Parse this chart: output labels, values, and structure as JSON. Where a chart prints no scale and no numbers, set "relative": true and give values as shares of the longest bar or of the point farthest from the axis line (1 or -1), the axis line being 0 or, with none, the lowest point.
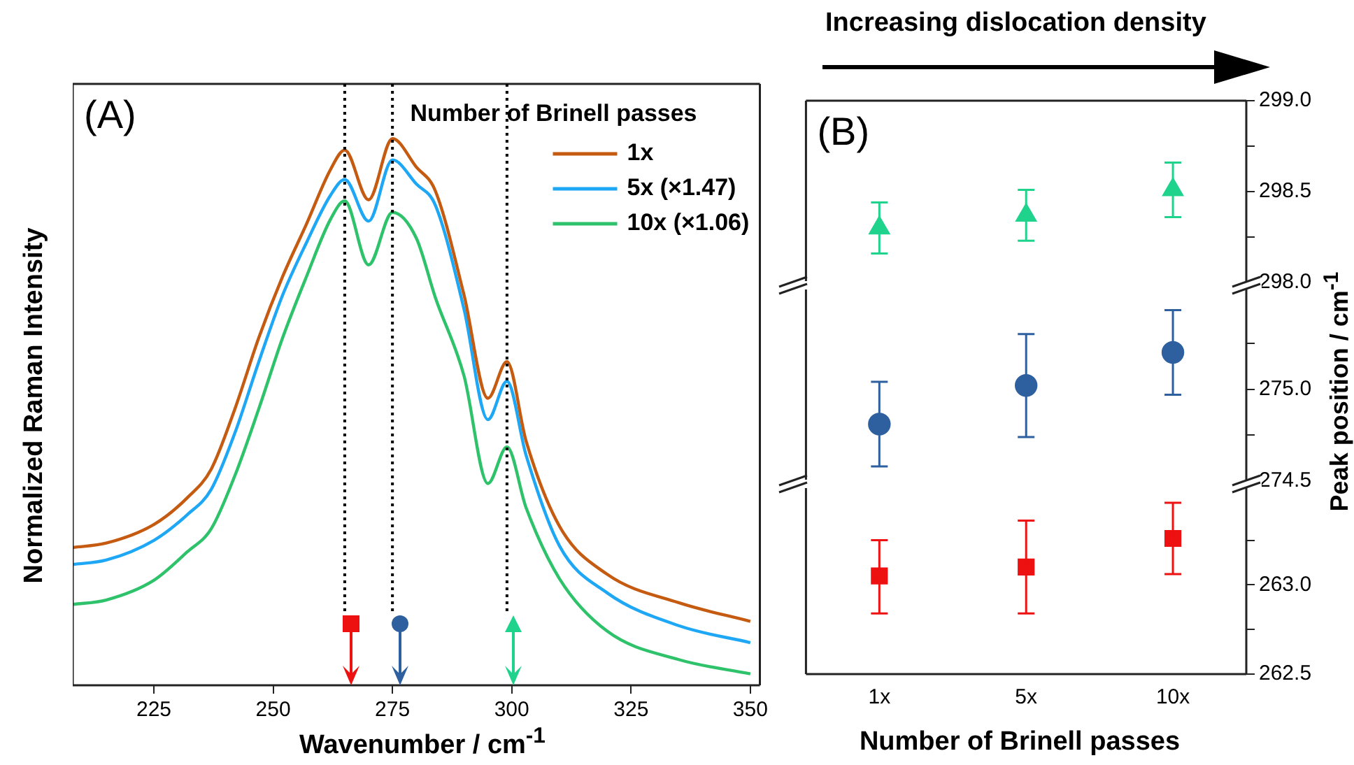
{
  "chart_data": [
    {
      "type": "line",
      "relative": true,
      "xlabel": "Wavenumber / cm$^{-1}$",
      "ylabel": "Normalized Raman Intensity",
      "legend_title": "Number of Brinell passes",
      "legend": "top right",
      "marker": "none",
      "annotations": [
        "(A)"
      ],
      "xlim": [
        208,
        352
      ],
      "xticks": [
        225,
        250,
        275,
        300,
        325,
        350
      ],
      "x": [
        208,
        215,
        225,
        232,
        237,
        242,
        247,
        252,
        257,
        262,
        265,
        270,
        275,
        280,
        284,
        290,
        295,
        299,
        303,
        310,
        320,
        335,
        350
      ],
      "series": [
        {
          "name": "1x",
          "color": "#c55a11",
          "values": [
            0.252,
            0.26,
            0.294,
            0.343,
            0.395,
            0.506,
            0.636,
            0.748,
            0.844,
            0.943,
            0.979,
            0.888,
            1.0,
            0.948,
            0.904,
            0.714,
            0.525,
            0.592,
            0.447,
            0.291,
            0.203,
            0.151,
            0.117
          ]
        },
        {
          "name": "5x (×1.47)",
          "color": "#1ea7f5",
          "values": [
            0.221,
            0.229,
            0.265,
            0.312,
            0.358,
            0.462,
            0.592,
            0.714,
            0.81,
            0.896,
            0.925,
            0.849,
            0.961,
            0.917,
            0.878,
            0.688,
            0.486,
            0.556,
            0.421,
            0.255,
            0.169,
            0.109,
            0.078
          ]
        },
        {
          "name": "10x (×1.06)",
          "color": "#2ec26a",
          "values": [
            0.148,
            0.156,
            0.192,
            0.244,
            0.286,
            0.384,
            0.506,
            0.636,
            0.748,
            0.852,
            0.886,
            0.769,
            0.865,
            0.818,
            0.709,
            0.566,
            0.369,
            0.436,
            0.325,
            0.195,
            0.099,
            0.047,
            0.021
          ]
        }
      ],
      "ref_lines": [
        {
          "axis": "x",
          "value": 265,
          "color": "#000000",
          "line_style": "dotted"
        },
        {
          "axis": "x",
          "value": 275,
          "color": "#000000",
          "line_style": "dotted"
        },
        {
          "axis": "x",
          "value": 299,
          "color": "#000000",
          "line_style": "dotted"
        }
      ]
    },
    {
      "type": "scatter",
      "title": "Increasing dislocation density",
      "annotations": [
        "(B)"
      ],
      "tick_labels": "y",
      "marker": "triangle",
      "ylim": [
        298.0,
        299.0
      ],
      "yticks": [
        {
          "value": 298.0,
          "label": "298.0"
        },
        {
          "value": 298.25,
          "label": null
        },
        {
          "value": 298.5,
          "label": "298.5"
        },
        {
          "value": 298.75,
          "label": null
        },
        {
          "value": 299.0,
          "label": "299.0"
        }
      ],
      "series": [
        {
          "color": "#1fd38c",
          "values": [
            298.3,
            298.37,
            298.51
          ],
          "errors": [
            [
              298.16,
              298.44
            ],
            [
              298.23,
              298.51
            ],
            [
              298.36,
              298.66
            ]
          ]
        }
      ]
    },
    {
      "type": "scatter",
      "ylabel": "Peak position / cm$^{-1}$",
      "tick_labels": "y",
      "marker": "circle",
      "ylim": [
        274.5,
        275.55
      ],
      "yticks": [
        {
          "value": 274.5,
          "label": "274.5"
        },
        {
          "value": 274.75,
          "label": null
        },
        {
          "value": 275.0,
          "label": "275.0"
        },
        {
          "value": 275.25,
          "label": null
        }
      ],
      "series": [
        {
          "color": "#2e5f9e",
          "values": [
            274.81,
            275.02,
            275.2
          ],
          "errors": [
            [
              274.58,
              275.04
            ],
            [
              274.74,
              275.3
            ],
            [
              274.97,
              275.43
            ]
          ]
        }
      ]
    },
    {
      "type": "scatter",
      "xlabel": "Number of Brinell passes",
      "categories": [
        "1x",
        "5x",
        "10x"
      ],
      "marker": "square",
      "ylim": [
        262.5,
        263.55
      ],
      "yticks": [
        {
          "value": 262.5,
          "label": "262.5"
        },
        {
          "value": 262.75,
          "label": null
        },
        {
          "value": 263.0,
          "label": "263.0"
        },
        {
          "value": 263.25,
          "label": null
        }
      ],
      "series": [
        {
          "color": "#ee1111",
          "values": [
            263.05,
            263.1,
            263.26
          ],
          "errors": [
            [
              262.84,
              263.25
            ],
            [
              262.84,
              263.36
            ],
            [
              263.06,
              263.46
            ]
          ]
        }
      ]
    }
  ]
}
